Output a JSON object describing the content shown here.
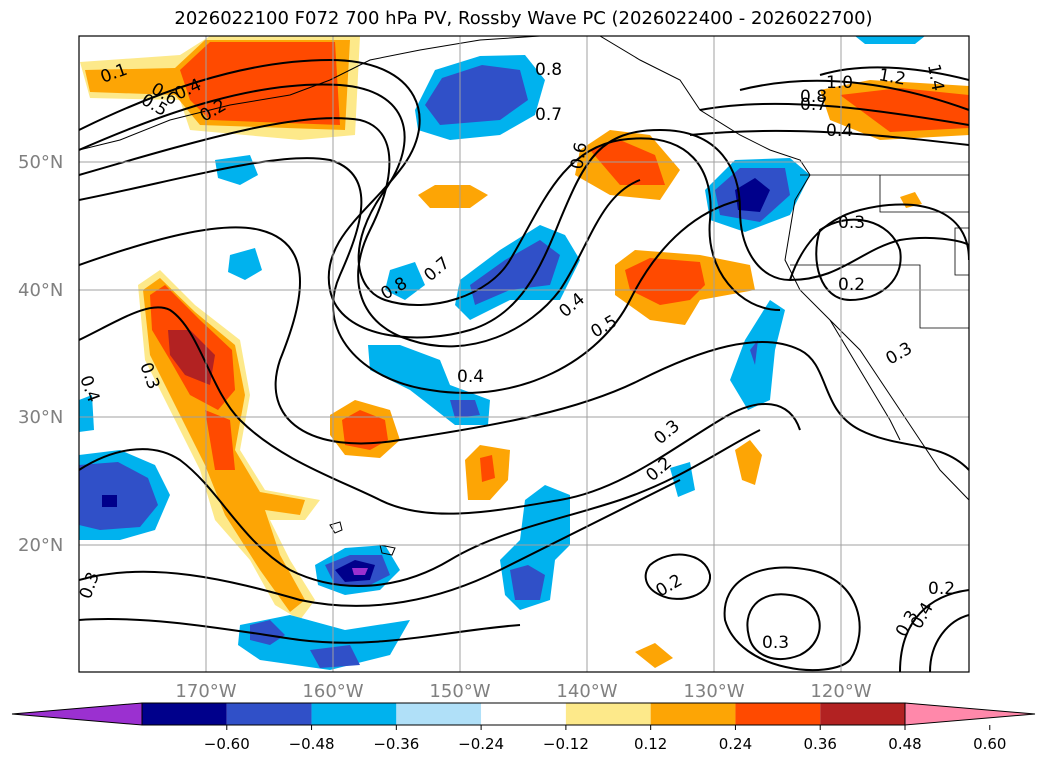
{
  "title": "2026022100 F072 700 hPa PV, Rossby Wave PC (2026022400 - 2026022700)",
  "map": {
    "projection": "lat-lon",
    "lon_range_deg": [
      -180,
      -110
    ],
    "lat_range_deg": [
      10,
      60
    ],
    "grid": true,
    "lat_labels": [
      "50°N",
      "40°N",
      "30°N",
      "20°N"
    ],
    "lon_labels": [
      "170°W",
      "160°W",
      "150°W",
      "140°W",
      "130°W",
      "120°W"
    ],
    "contour_color": "#000000",
    "contour_labels": [
      "0.1",
      "0.6",
      "0.5",
      "0.4",
      "0.2",
      "0.8",
      "0.7",
      "0.6",
      "1.0",
      "1.2",
      "1.4",
      "0.8",
      "0.7",
      "0.4",
      "0.3",
      "0.2",
      "0.8",
      "0.7",
      "0.4",
      "0.5",
      "0.4",
      "0.3",
      "0.4",
      "0.3",
      "0.3",
      "0.2",
      "0.2",
      "0.3",
      "0.3",
      "0.2",
      "0.3",
      "0.4"
    ]
  },
  "colorbar": {
    "extend": "both",
    "ticks": [
      "−0.60",
      "−0.48",
      "−0.36",
      "−0.24",
      "−0.12",
      "0.12",
      "0.24",
      "0.36",
      "0.48",
      "0.60"
    ],
    "colors": [
      "#9b30d0",
      "#00008b",
      "#3050c8",
      "#00b2ee",
      "#b0e0f8",
      "#ffffff",
      "#fde98a",
      "#fda505",
      "#ff4a00",
      "#b22222",
      "#ff88aa"
    ]
  }
}
